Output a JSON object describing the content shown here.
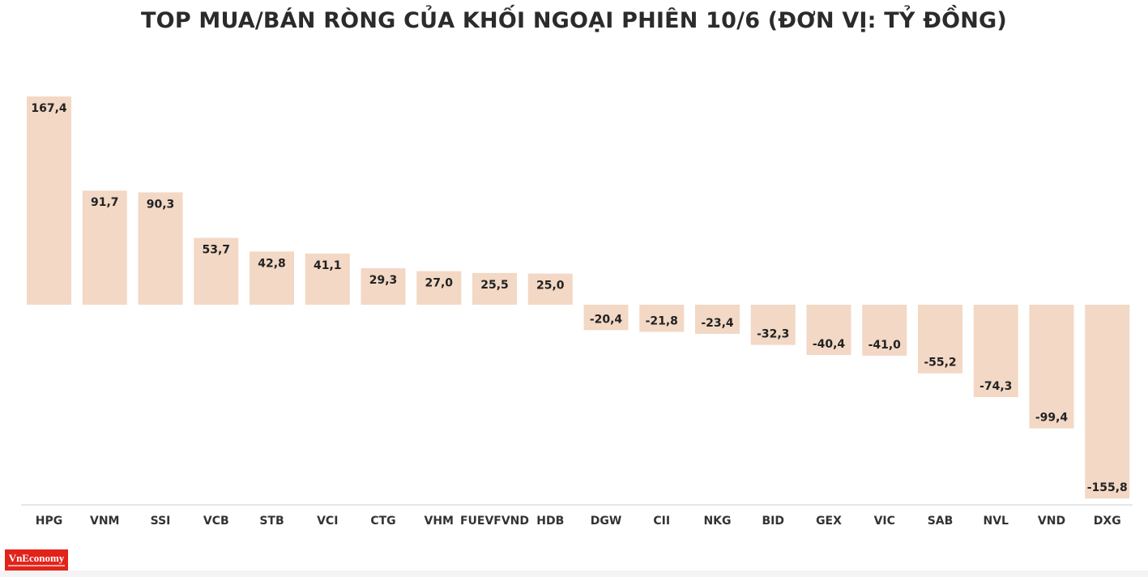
{
  "title": "TOP MUA/BÁN RÒNG CỦA KHỐI NGOẠI PHIÊN 10/6 (ĐƠN VỊ: TỶ ĐỒNG)",
  "logo": {
    "text": "VnEconomy"
  },
  "colors": {
    "bar": "#f2d8c5",
    "axis": "#cccccc",
    "text": "#222222",
    "logo": "#e2231a"
  },
  "chart_data": {
    "type": "bar",
    "title": "TOP MUA/BÁN RÒNG CỦA KHỐI NGOẠI PHIÊN 10/6 (ĐƠN VỊ: TỶ ĐỒNG)",
    "categories": [
      "HPG",
      "VNM",
      "SSI",
      "VCB",
      "STB",
      "VCI",
      "CTG",
      "VHM",
      "FUEVFVND",
      "HDB",
      "DGW",
      "CII",
      "NKG",
      "BID",
      "GEX",
      "VIC",
      "SAB",
      "NVL",
      "VND",
      "DXG"
    ],
    "values": [
      167.4,
      91.7,
      90.3,
      53.7,
      42.8,
      41.1,
      29.3,
      27.0,
      25.5,
      25.0,
      -20.4,
      -21.8,
      -23.4,
      -32.3,
      -40.4,
      -41.0,
      -55.2,
      -74.3,
      -99.4,
      -155.8
    ],
    "value_labels": [
      "167,4",
      "91,7",
      "90,3",
      "53,7",
      "42,8",
      "41,1",
      "29,3",
      "27,0",
      "25,5",
      "25,0",
      "-20,4",
      "-21,8",
      "-23,4",
      "-32,3",
      "-40,4",
      "-41,0",
      "-55,2",
      "-74,3",
      "-99,4",
      "-155,8"
    ],
    "ylim": [
      -160,
      170
    ],
    "grid": false,
    "legend": "none",
    "xlabel": "",
    "ylabel": ""
  }
}
